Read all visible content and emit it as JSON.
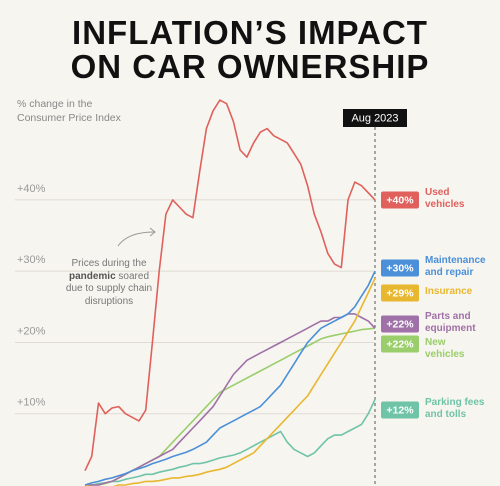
{
  "chart_data": {
    "type": "line",
    "title_lines": [
      "INFLATION’S IMPACT",
      "ON CAR OWNERSHIP"
    ],
    "ylabel_lines": [
      "% change in the",
      "Consumer Price Index"
    ],
    "annotation_parts": [
      "Prices during the ",
      "pandemic",
      " soared due to supply chain disruptions"
    ],
    "categories": [
      null,
      null,
      null,
      null,
      null,
      null,
      null,
      null,
      null,
      null,
      null,
      null,
      null,
      null,
      null,
      null,
      null,
      null,
      null,
      null,
      null,
      null,
      null,
      null,
      null,
      null,
      null,
      null,
      null,
      null,
      null,
      null,
      null,
      null,
      null,
      null,
      null,
      null,
      null,
      null,
      null,
      null,
      null,
      "Aug 2023"
    ],
    "ylim": [
      0,
      55
    ],
    "yticks": [
      {
        "value": 10,
        "label": "+10%"
      },
      {
        "value": 20,
        "label": "+20%"
      },
      {
        "value": 30,
        "label": "+30%"
      },
      {
        "value": 40,
        "label": "+40%"
      }
    ],
    "grid": true,
    "series": [
      {
        "name": "Used vehicles",
        "color": "#e0605c",
        "end_label": "+40%",
        "values": [
          2,
          4,
          11.5,
          10,
          10.8,
          11,
          10,
          9.5,
          9,
          10.5,
          20,
          30,
          38,
          40,
          39,
          38,
          37.5,
          44,
          50,
          52.5,
          54,
          53.5,
          51,
          47,
          46,
          48,
          49.5,
          50,
          49,
          48.5,
          48,
          46.5,
          45,
          42,
          38,
          35.5,
          32.5,
          31,
          30.5,
          40,
          42.5,
          42,
          41,
          40
        ]
      },
      {
        "name": "Maintenance and repair",
        "color": "#4a8fd8",
        "end_label": "+30%",
        "values": [
          0,
          0.3,
          0.5,
          0.8,
          1,
          1.3,
          1.6,
          2,
          2.3,
          2.6,
          3,
          3.3,
          3.6,
          4,
          4.3,
          4.6,
          5,
          5.5,
          6,
          7,
          8,
          8.5,
          9,
          9.5,
          10,
          10.5,
          11,
          12,
          13,
          14,
          15.5,
          17,
          18.5,
          20,
          21,
          22,
          22.5,
          23,
          23.5,
          24,
          25,
          26.5,
          28,
          30
        ]
      },
      {
        "name": "Insurance",
        "color": "#e8b730",
        "end_label": "+29%",
        "values": [
          0,
          -0.3,
          -0.5,
          -0.5,
          -0.3,
          0,
          0,
          0.2,
          0.3,
          0.5,
          0.5,
          0.6,
          0.8,
          1,
          1,
          1.2,
          1.3,
          1.5,
          1.8,
          2,
          2.2,
          2.5,
          3,
          3.5,
          4,
          4.5,
          5.5,
          6.5,
          7.5,
          8.5,
          9.5,
          10.5,
          11.5,
          12.5,
          14,
          15.5,
          17,
          18.5,
          20,
          21.5,
          23,
          25,
          27,
          29
        ]
      },
      {
        "name": "Parts and equipment",
        "color": "#a070a8",
        "end_label": "+22%",
        "values": [
          0,
          0,
          0,
          0.3,
          0.5,
          1,
          1.5,
          2,
          2.5,
          3,
          3.5,
          4,
          4.5,
          5,
          6,
          7,
          8,
          9,
          10,
          11,
          12.5,
          14,
          15.5,
          16.5,
          17.5,
          18,
          18.5,
          19,
          19.5,
          20,
          20.5,
          21,
          21.5,
          22,
          22.5,
          23,
          23,
          23.5,
          23.5,
          24,
          24,
          23.5,
          23,
          22
        ]
      },
      {
        "name": "New vehicles",
        "color": "#9acd6b",
        "end_label": "+22%",
        "values": [
          0,
          0,
          0,
          0.2,
          0.5,
          1,
          1.5,
          2,
          2.5,
          3,
          3.5,
          4,
          5,
          6,
          7,
          8,
          9,
          10,
          11,
          12,
          13,
          13.5,
          14,
          14.5,
          15,
          15.5,
          16,
          16.5,
          17,
          17.5,
          18,
          18.5,
          19,
          19.5,
          20,
          20.5,
          20.8,
          21,
          21.2,
          21.4,
          21.6,
          21.8,
          21.9,
          22
        ]
      },
      {
        "name": "Parking fees and tolls",
        "color": "#6fc4a8",
        "end_label": "+12%",
        "values": [
          0,
          0,
          0.2,
          0.3,
          0.5,
          0.5,
          0.8,
          1,
          1.2,
          1.5,
          1.5,
          1.8,
          2,
          2.2,
          2.5,
          2.7,
          3,
          3,
          3.2,
          3.5,
          3.8,
          4,
          4.2,
          4.5,
          5,
          5.5,
          6,
          6.5,
          7,
          7.5,
          6,
          5,
          4.5,
          4,
          4.5,
          5.5,
          6.5,
          7,
          7,
          7.5,
          8,
          8.5,
          10,
          12
        ]
      }
    ]
  }
}
